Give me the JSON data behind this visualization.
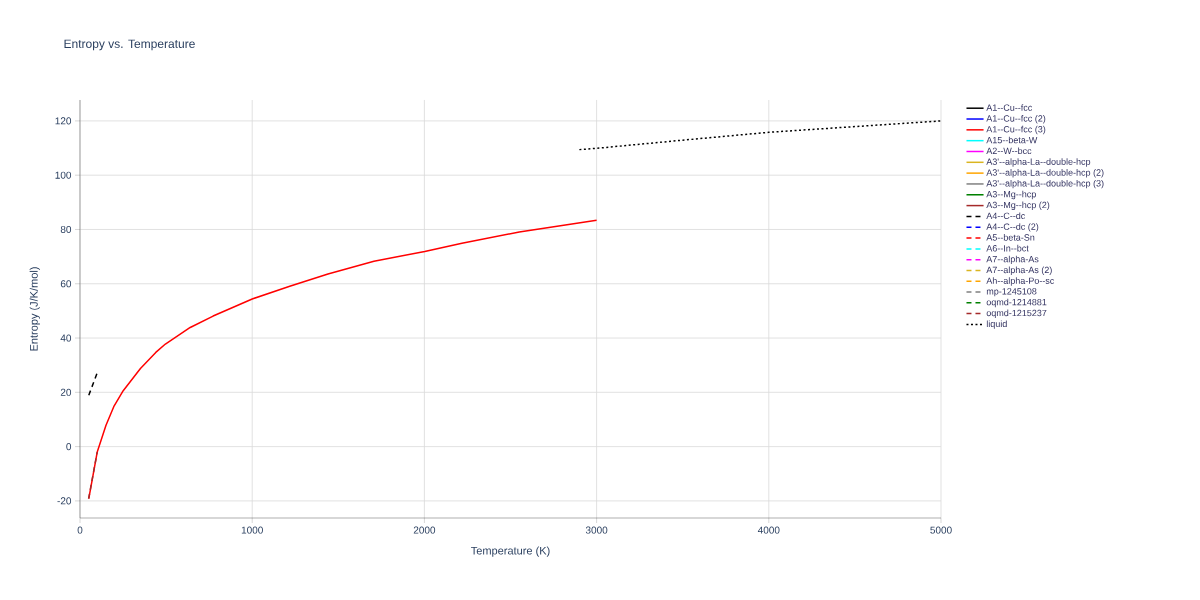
{
  "chart_data": {
    "type": "line",
    "title": "Entropy vs. Temperature",
    "xlabel": "Temperature (K)",
    "ylabel": "Entropy (J/K/mol)",
    "xlim": [
      0,
      5000
    ],
    "ylim": [
      -26.3,
      127.7
    ],
    "xticks": [
      0,
      1000,
      2000,
      3000,
      4000,
      5000
    ],
    "yticks": [
      -20,
      0,
      20,
      40,
      60,
      80,
      100,
      120
    ],
    "grid": true,
    "legend": "right",
    "marker": "none",
    "series": [
      {
        "name": "A1--Cu--fcc",
        "color": "#000000",
        "line_style": "solid"
      },
      {
        "name": "A1--Cu--fcc (2)",
        "color": "#0000ff",
        "line_style": "solid"
      },
      {
        "name": "A1--Cu--fcc (3)",
        "color": "#ff0000",
        "line_style": "solid",
        "x": [
          51,
          100,
          151,
          196,
          251,
          351,
          440,
          496,
          640,
          773,
          1000,
          1218,
          1440,
          1707,
          2002,
          2218,
          2551,
          3000
        ],
        "values": [
          -19.2,
          -2,
          7.9,
          14.7,
          20.6,
          28.8,
          34.7,
          37.8,
          43.9,
          48.1,
          54.4,
          59.1,
          63.6,
          68.3,
          71.9,
          74.9,
          79.1,
          83.4
        ]
      },
      {
        "name": "A15--beta-W",
        "color": "#00ffff",
        "line_style": "solid"
      },
      {
        "name": "A2--W--bcc",
        "color": "#ff00ff",
        "line_style": "solid"
      },
      {
        "name": "A3'--alpha-La--double-hcp",
        "color": "#dab520",
        "line_style": "solid"
      },
      {
        "name": "A3'--alpha-La--double-hcp (2)",
        "color": "#ffa500",
        "line_style": "solid"
      },
      {
        "name": "A3'--alpha-La--double-hcp (3)",
        "color": "#808080",
        "line_style": "solid"
      },
      {
        "name": "A3--Mg--hcp",
        "color": "#008000",
        "line_style": "solid"
      },
      {
        "name": "A3--Mg--hcp (2)",
        "color": "#a52a2a",
        "line_style": "solid"
      },
      {
        "name": "A4--C--dc",
        "color": "#000000",
        "line_style": "dashed",
        "x": [
          51,
          100
        ],
        "values": [
          18.9,
          27.2
        ]
      },
      {
        "name": "A4--C--dc (2)",
        "color": "#0000ff",
        "line_style": "dashed"
      },
      {
        "name": "A5--beta-Sn",
        "color": "#ff0000",
        "line_style": "dashed"
      },
      {
        "name": "A6--In--bct",
        "color": "#00ffff",
        "line_style": "dashed"
      },
      {
        "name": "A7--alpha-As",
        "color": "#ff00ff",
        "line_style": "dashed"
      },
      {
        "name": "A7--alpha-As (2)",
        "color": "#dab520",
        "line_style": "dashed"
      },
      {
        "name": "Ah--alpha-Po--sc",
        "color": "#ffa500",
        "line_style": "dashed"
      },
      {
        "name": "mp-1245108",
        "color": "#808080",
        "line_style": "dashed"
      },
      {
        "name": "oqmd-1214881",
        "color": "#008000",
        "line_style": "dashed"
      },
      {
        "name": "oqmd-1215237",
        "color": "#a52a2a",
        "line_style": "dashed",
        "x": [
          50,
          100
        ],
        "values": [
          -19.2,
          -2
        ]
      },
      {
        "name": "liquid",
        "color": "#000000",
        "line_style": "dotted",
        "x": [
          2900,
          3000,
          3500,
          4000,
          5000
        ],
        "values": [
          109.4,
          109.9,
          112.9,
          115.8,
          120.0
        ]
      }
    ]
  }
}
